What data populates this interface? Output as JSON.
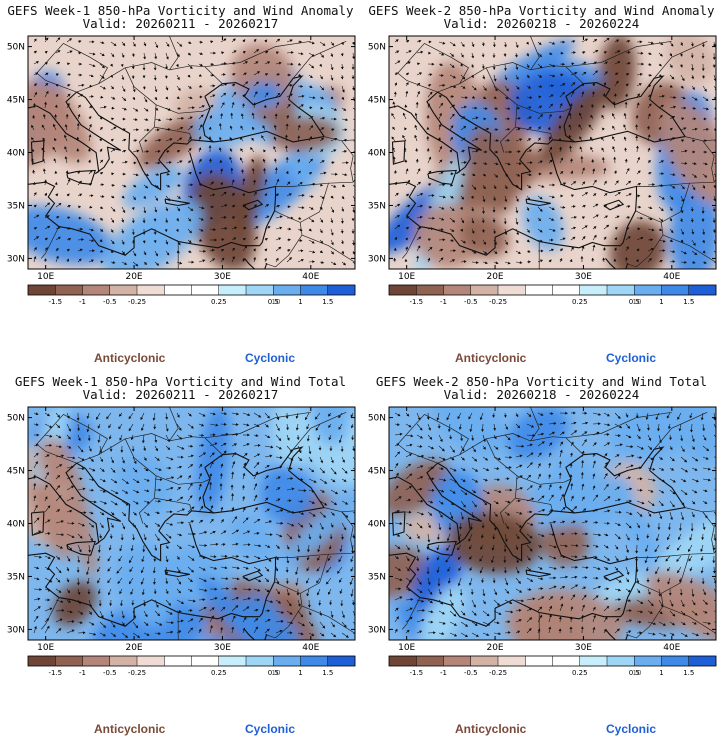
{
  "panels": [
    {
      "id": "week1-anomaly",
      "title": "GEFS Week-1 850-hPa Vorticity and Wind Anomaly",
      "valid": "Valid: 20260211 - 20260217",
      "kind": "anomaly",
      "seed": 11
    },
    {
      "id": "week2-anomaly",
      "title": "GEFS Week-2 850-hPa Vorticity and Wind Anomaly",
      "valid": "Valid: 20260218 - 20260224",
      "kind": "anomaly",
      "seed": 23
    },
    {
      "id": "week1-total",
      "title": "GEFS Week-1 850-hPa Vorticity and Wind Total",
      "valid": "Valid: 20260211 - 20260217",
      "kind": "total",
      "seed": 37
    },
    {
      "id": "week2-total",
      "title": "GEFS Week-2 850-hPa Vorticity and Wind Total",
      "valid": "Valid: 20260218 - 20260224",
      "kind": "total",
      "seed": 53
    }
  ],
  "map": {
    "lat_labels": [
      "50N",
      "45N",
      "40N",
      "35N",
      "30N"
    ],
    "lon_labels": [
      "10E",
      "20E",
      "30E",
      "40E"
    ]
  },
  "colorbar": {
    "tick_labels": [
      "-1.5",
      "-1",
      "-0.5",
      "-0.25",
      "0.25",
      "0.5",
      "1",
      "1.5"
    ],
    "scale_label": "10",
    "colors": [
      "#6e4536",
      "#8f6251",
      "#b4867a",
      "#d3b2a6",
      "#efdcd4",
      "#ffffff",
      "#ffffff",
      "#c7eefb",
      "#9fd6f5",
      "#6aaef0",
      "#3f8ae8",
      "#1e5fd8"
    ],
    "anticyclonic_label": "Anticyclonic",
    "cyclonic_label": "Cyclonic",
    "anticyclonic_color": "#7a4a3a",
    "cyclonic_color": "#1f5fd6"
  }
}
